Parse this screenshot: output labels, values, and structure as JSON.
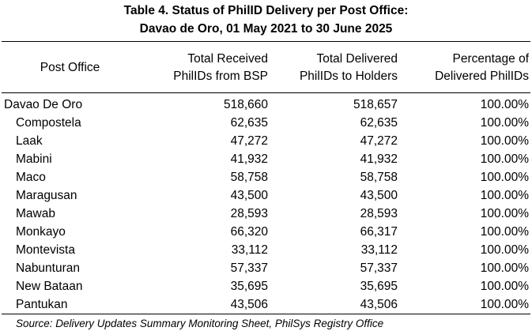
{
  "title": {
    "line1": "Table 4. Status of PhilID Delivery per Post Office:",
    "line2": "Davao de Oro, 01 May 2021 to 30 June 2025"
  },
  "headers": {
    "post_office": "Post Office",
    "received": [
      "Total Received",
      "PhilIDs from BSP"
    ],
    "delivered": [
      "Total Delivered",
      "PhilIDs to Holders"
    ],
    "percentage": [
      "Percentage of",
      "Delivered PhilIDs"
    ]
  },
  "rows": [
    {
      "name": "Davao De Oro",
      "received": "518,660",
      "delivered": "518,657",
      "percentage": "100.00%"
    },
    {
      "name": "Compostela",
      "received": "62,635",
      "delivered": "62,635",
      "percentage": "100.00%"
    },
    {
      "name": "Laak",
      "received": "47,272",
      "delivered": "47,272",
      "percentage": "100.00%"
    },
    {
      "name": "Mabini",
      "received": "41,932",
      "delivered": "41,932",
      "percentage": "100.00%"
    },
    {
      "name": "Maco",
      "received": "58,758",
      "delivered": "58,758",
      "percentage": "100.00%"
    },
    {
      "name": "Maragusan",
      "received": "43,500",
      "delivered": "43,500",
      "percentage": "100.00%"
    },
    {
      "name": "Mawab",
      "received": "28,593",
      "delivered": "28,593",
      "percentage": "100.00%"
    },
    {
      "name": "Monkayo",
      "received": "66,320",
      "delivered": "66,317",
      "percentage": "100.00%"
    },
    {
      "name": "Montevista",
      "received": "33,112",
      "delivered": "33,112",
      "percentage": "100.00%"
    },
    {
      "name": "Nabunturan",
      "received": "57,337",
      "delivered": "57,337",
      "percentage": "100.00%"
    },
    {
      "name": "New Bataan",
      "received": "35,695",
      "delivered": "35,695",
      "percentage": "100.00%"
    },
    {
      "name": "Pantukan",
      "received": "43,506",
      "delivered": "43,506",
      "percentage": "100.00%"
    }
  ],
  "source": "Source: Delivery Updates Summary Monitoring Sheet, PhilSys Registry Office"
}
